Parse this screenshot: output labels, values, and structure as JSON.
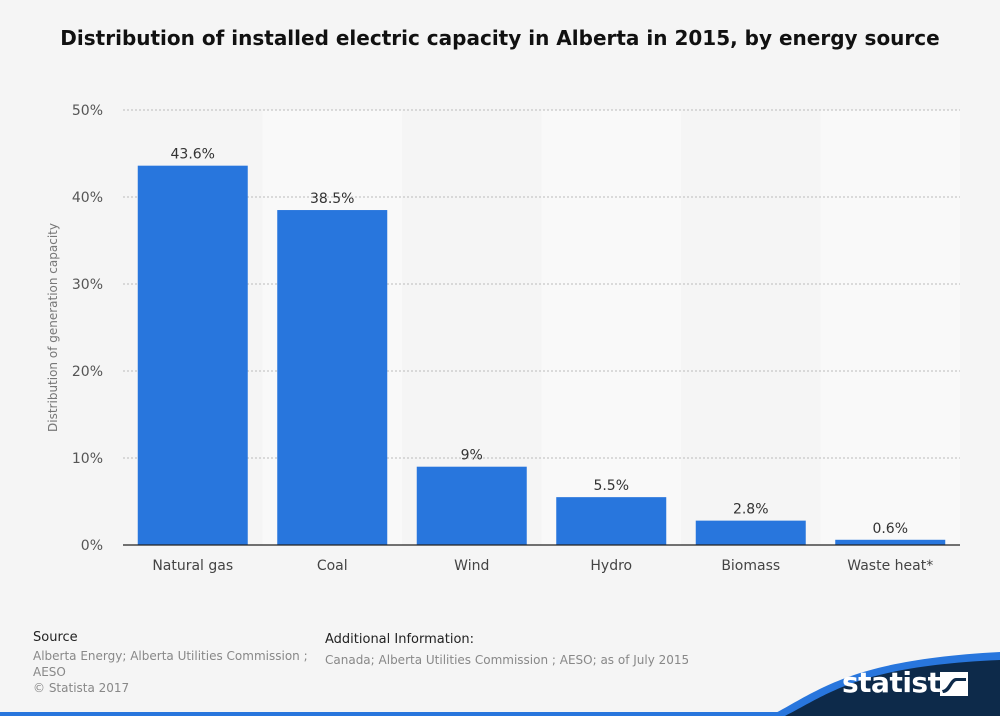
{
  "chart_data": {
    "type": "bar",
    "title": "Distribution of installed electric capacity in Alberta in 2015, by energy source",
    "xlabel": "",
    "ylabel": "Distribution of generation capacity",
    "categories": [
      "Natural gas",
      "Coal",
      "Wind",
      "Hydro",
      "Biomass",
      "Waste heat*"
    ],
    "values": [
      43.6,
      38.5,
      9,
      5.5,
      2.8,
      0.6
    ],
    "value_labels": [
      "43.6%",
      "38.5%",
      "9%",
      "5.5%",
      "2.8%",
      "0.6%"
    ],
    "ylim": [
      0,
      50
    ],
    "yticks": [
      0,
      10,
      20,
      30,
      40,
      50
    ],
    "ytick_labels": [
      "0%",
      "10%",
      "20%",
      "30%",
      "40%",
      "50%"
    ],
    "grid": true,
    "legend": "none",
    "colors": {
      "bar": "#2876dd",
      "band": "#ebebeb"
    }
  },
  "footer": {
    "source_heading": "Source",
    "source_text": "Alberta Energy; Alberta Utilities Commission ; AESO",
    "copyright": "© Statista 2017",
    "additional_heading": "Additional Information:",
    "additional_text": "Canada; Alberta Utilities Commission ; AESO; as of July 2015"
  },
  "brand": {
    "name": "statista",
    "colors": {
      "navy": "#0d2a4a",
      "accent": "#2876dd"
    }
  }
}
